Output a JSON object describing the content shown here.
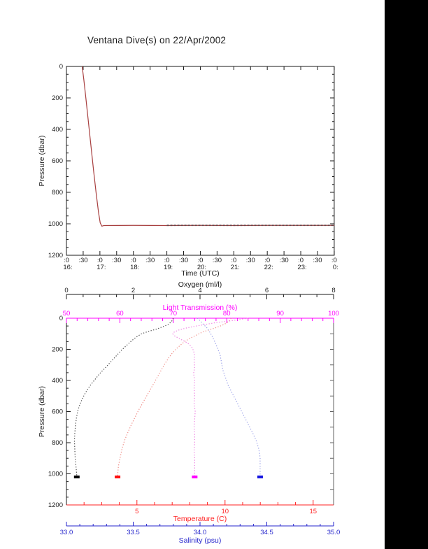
{
  "title": "Ventana Dive(s) on 22/Apr/2002",
  "colors": {
    "black": "#1a1a1a",
    "gray_frame": "#606060",
    "magenta": "#ff00ff",
    "red": "#ff2020",
    "blue": "#2626cc",
    "dive_track": "#a84040",
    "dive_track_dark": "#63474a",
    "oxygen_curve": "#4a4a4a",
    "temperature_curve": "#f0908a",
    "light_curve": "#ee82e2",
    "salinity_curve": "#9aa0e8",
    "oxygen_blob": "#000000",
    "temperature_blob": "#ff1010",
    "light_blob": "#ff00ff",
    "salinity_blob": "#1515e0"
  },
  "chart_data": [
    {
      "type": "line",
      "title": "Ventana Dive(s) on 22/Apr/2002",
      "xlabel": "Time (UTC)",
      "ylabel": "Pressure (dbar)",
      "xlim_hours_utc": [
        16,
        24
      ],
      "ylim": [
        0,
        1200
      ],
      "y_axis_reversed": true,
      "grid": false,
      "y_ticks": [
        {
          "v": 0,
          "l": "0"
        },
        {
          "v": 200,
          "l": "200"
        },
        {
          "v": 400,
          "l": "400"
        },
        {
          "v": 600,
          "l": "600"
        },
        {
          "v": 800,
          "l": "800"
        },
        {
          "v": 1000,
          "l": "1000"
        },
        {
          "v": 1200,
          "l": "1200"
        }
      ],
      "y_minor_step": 50,
      "x_ticks": [
        {
          "v": 16,
          "l": ":0",
          "hour": "16:"
        },
        {
          "v": 16.5,
          "l": ":30"
        },
        {
          "v": 17,
          "l": ":0",
          "hour": "17:"
        },
        {
          "v": 17.5,
          "l": ":30"
        },
        {
          "v": 18,
          "l": ":0",
          "hour": "18:"
        },
        {
          "v": 18.5,
          "l": ":30"
        },
        {
          "v": 19,
          "l": ":0",
          "hour": "19:"
        },
        {
          "v": 19.5,
          "l": ":30"
        },
        {
          "v": 20,
          "l": ":0",
          "hour": "20:"
        },
        {
          "v": 20.5,
          "l": ":30"
        },
        {
          "v": 21,
          "l": ":0",
          "hour": "21:"
        },
        {
          "v": 21.5,
          "l": ":30"
        },
        {
          "v": 22,
          "l": ":0",
          "hour": "22:"
        },
        {
          "v": 22.5,
          "l": ":30"
        },
        {
          "v": 23,
          "l": ":0",
          "hour": "23:"
        },
        {
          "v": 23.5,
          "l": ":30"
        },
        {
          "v": 24,
          "l": ":0",
          "hour": "0:"
        }
      ],
      "series": [
        {
          "name": "dive-depth-track",
          "color_key": "dive_track",
          "width": 1.2,
          "points": [
            [
              16.47,
              0
            ],
            [
              16.52,
              85
            ],
            [
              16.58,
              200
            ],
            [
              16.65,
              340
            ],
            [
              16.73,
              500
            ],
            [
              16.81,
              660
            ],
            [
              16.89,
              810
            ],
            [
              16.96,
              930
            ],
            [
              17.01,
              995
            ],
            [
              17.06,
              1015
            ],
            [
              17.12,
              1011
            ],
            [
              18.0,
              1010
            ],
            [
              19.0,
              1011
            ],
            [
              20.0,
              1010
            ],
            [
              21.0,
              1011
            ],
            [
              22.0,
              1010
            ],
            [
              23.0,
              1010
            ],
            [
              24.0,
              1010
            ]
          ]
        },
        {
          "name": "bottom-time-dark-overlay",
          "color_key": "dive_track_dark",
          "width": 1.7,
          "dash": "3,2",
          "points": [
            [
              19.0,
              1010
            ],
            [
              20.6,
              1010
            ],
            [
              24.0,
              1010
            ]
          ]
        }
      ]
    },
    {
      "type": "scatter",
      "ylabel": "Pressure (dbar)",
      "ylim": [
        0,
        1200
      ],
      "y_axis_reversed": true,
      "grid": false,
      "y_ticks": [
        {
          "v": 0,
          "l": "0"
        },
        {
          "v": 200,
          "l": "200"
        },
        {
          "v": 400,
          "l": "400"
        },
        {
          "v": 600,
          "l": "600"
        },
        {
          "v": 800,
          "l": "800"
        },
        {
          "v": 1000,
          "l": "1000"
        },
        {
          "v": 1200,
          "l": "1200"
        }
      ],
      "y_minor_step": 50,
      "x_axes": [
        {
          "id": "oxygen",
          "label": "Oxygen (ml/l)",
          "color_key": "black",
          "range": [
            0,
            8
          ],
          "ticks": [
            {
              "v": 0,
              "l": "0"
            },
            {
              "v": 2,
              "l": "2"
            },
            {
              "v": 4,
              "l": "4"
            },
            {
              "v": 6,
              "l": "6"
            },
            {
              "v": 8,
              "l": "8"
            }
          ],
          "minor_step": 0.5
        },
        {
          "id": "light",
          "label": "Light Transmission (%)",
          "color_key": "magenta",
          "range": [
            50,
            100
          ],
          "ticks": [
            {
              "v": 50,
              "l": "50"
            },
            {
              "v": 60,
              "l": "60"
            },
            {
              "v": 70,
              "l": "70"
            },
            {
              "v": 80,
              "l": "80"
            },
            {
              "v": 90,
              "l": "90"
            },
            {
              "v": 100,
              "l": "100"
            }
          ],
          "minor_step": 2
        },
        {
          "id": "temperature",
          "label": "Temperature (C)",
          "color_key": "red",
          "range": [
            1,
            16.16
          ],
          "ticks": [
            {
              "v": 5,
              "l": "5"
            },
            {
              "v": 10,
              "l": "10"
            },
            {
              "v": 15,
              "l": "15"
            }
          ],
          "minor_step": 1
        },
        {
          "id": "salinity",
          "label": "Salinity (psu)",
          "color_key": "blue",
          "range": [
            33,
            35
          ],
          "ticks": [
            {
              "v": 33,
              "l": "33.0"
            },
            {
              "v": 33.5,
              "l": "33.5"
            },
            {
              "v": 34,
              "l": "34.0"
            },
            {
              "v": 34.5,
              "l": "34.5"
            },
            {
              "v": 35,
              "l": "35.0"
            }
          ],
          "minor_step": 0.1
        }
      ],
      "series": [
        {
          "name": "oxygen-profile",
          "axis": "oxygen",
          "color_key": "oxygen_curve",
          "blob_color_key": "oxygen_blob",
          "bottom_value": 0.31,
          "bottom_pressure": 1020,
          "points": [
            [
              3.2,
              0
            ],
            [
              3.15,
              20
            ],
            [
              3.05,
              40
            ],
            [
              2.88,
              55
            ],
            [
              2.7,
              70
            ],
            [
              2.45,
              85
            ],
            [
              2.25,
              100
            ],
            [
              2.1,
              120
            ],
            [
              1.95,
              145
            ],
            [
              1.8,
              175
            ],
            [
              1.65,
              205
            ],
            [
              1.5,
              240
            ],
            [
              1.35,
              275
            ],
            [
              1.18,
              315
            ],
            [
              1.0,
              355
            ],
            [
              0.85,
              395
            ],
            [
              0.7,
              435
            ],
            [
              0.58,
              475
            ],
            [
              0.48,
              515
            ],
            [
              0.4,
              555
            ],
            [
              0.34,
              595
            ],
            [
              0.3,
              640
            ],
            [
              0.27,
              690
            ],
            [
              0.25,
              740
            ],
            [
              0.24,
              790
            ],
            [
              0.25,
              840
            ],
            [
              0.26,
              890
            ],
            [
              0.28,
              940
            ],
            [
              0.3,
              985
            ],
            [
              0.31,
              1015
            ]
          ]
        },
        {
          "name": "temperature-profile",
          "axis": "temperature",
          "color_key": "temperature_curve",
          "blob_color_key": "temperature_blob",
          "bottom_value": 3.9,
          "bottom_pressure": 1020,
          "points": [
            [
              10.35,
              0
            ],
            [
              10.25,
              15
            ],
            [
              10.1,
              30
            ],
            [
              9.85,
              45
            ],
            [
              9.5,
              60
            ],
            [
              9.1,
              75
            ],
            [
              8.7,
              90
            ],
            [
              8.35,
              110
            ],
            [
              8.0,
              130
            ],
            [
              7.7,
              150
            ],
            [
              7.45,
              175
            ],
            [
              7.2,
              200
            ],
            [
              7.0,
              225
            ],
            [
              6.8,
              255
            ],
            [
              6.6,
              290
            ],
            [
              6.45,
              320
            ],
            [
              6.3,
              350
            ],
            [
              6.1,
              390
            ],
            [
              5.9,
              430
            ],
            [
              5.7,
              470
            ],
            [
              5.5,
              510
            ],
            [
              5.3,
              550
            ],
            [
              5.1,
              590
            ],
            [
              4.9,
              635
            ],
            [
              4.7,
              680
            ],
            [
              4.5,
              730
            ],
            [
              4.3,
              785
            ],
            [
              4.15,
              840
            ],
            [
              4.05,
              895
            ],
            [
              3.95,
              950
            ],
            [
              3.9,
              1015
            ]
          ]
        },
        {
          "name": "light-transmission-profile",
          "axis": "light",
          "color_key": "light_curve",
          "blob_color_key": "light_blob",
          "bottom_value": 74.0,
          "bottom_pressure": 1020,
          "points": [
            [
              84,
              0
            ],
            [
              82.5,
              8
            ],
            [
              80.5,
              18
            ],
            [
              78,
              28
            ],
            [
              76,
              40
            ],
            [
              74,
              52
            ],
            [
              72.3,
              64
            ],
            [
              71,
              76
            ],
            [
              70.2,
              88
            ],
            [
              69.9,
              100
            ],
            [
              70.3,
              115
            ],
            [
              71.2,
              132
            ],
            [
              72.2,
              150
            ],
            [
              73.0,
              168
            ],
            [
              73.5,
              188
            ],
            [
              73.8,
              210
            ],
            [
              74.0,
              240
            ],
            [
              73.9,
              275
            ],
            [
              74.0,
              315
            ],
            [
              73.8,
              355
            ],
            [
              74.0,
              400
            ],
            [
              73.9,
              450
            ],
            [
              74.0,
              500
            ],
            [
              73.9,
              550
            ],
            [
              74.1,
              600
            ],
            [
              74.0,
              650
            ],
            [
              73.9,
              700
            ],
            [
              74.0,
              750
            ],
            [
              74.0,
              800
            ],
            [
              73.9,
              850
            ],
            [
              74.0,
              900
            ],
            [
              74.0,
              950
            ],
            [
              74.0,
              1015
            ]
          ]
        },
        {
          "name": "salinity-profile",
          "axis": "salinity",
          "color_key": "salinity_curve",
          "blob_color_key": "salinity_blob",
          "bottom_value": 34.45,
          "bottom_pressure": 1020,
          "points": [
            [
              33.98,
              0
            ],
            [
              34.0,
              15
            ],
            [
              34.02,
              35
            ],
            [
              34.05,
              60
            ],
            [
              34.07,
              85
            ],
            [
              34.09,
              115
            ],
            [
              34.11,
              150
            ],
            [
              34.13,
              190
            ],
            [
              34.15,
              235
            ],
            [
              34.16,
              280
            ],
            [
              34.17,
              330
            ],
            [
              34.19,
              380
            ],
            [
              34.21,
              430
            ],
            [
              34.24,
              480
            ],
            [
              34.27,
              530
            ],
            [
              34.3,
              580
            ],
            [
              34.33,
              630
            ],
            [
              34.36,
              680
            ],
            [
              34.39,
              730
            ],
            [
              34.42,
              785
            ],
            [
              34.44,
              840
            ],
            [
              34.45,
              895
            ],
            [
              34.45,
              945
            ],
            [
              34.45,
              1015
            ]
          ]
        }
      ]
    }
  ]
}
